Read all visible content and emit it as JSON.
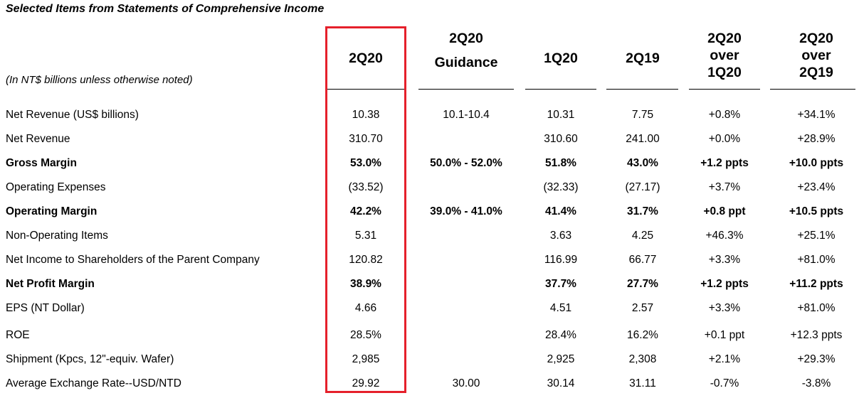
{
  "title": "Selected Items from Statements of Comprehensive Income",
  "note": "(In NT$ billions unless otherwise noted)",
  "headers": [
    {
      "lines": [
        "2Q20"
      ]
    },
    {
      "lines": [
        "2Q20",
        "Guidance"
      ]
    },
    {
      "lines": [
        "1Q20"
      ]
    },
    {
      "lines": [
        "2Q19"
      ]
    },
    {
      "lines": [
        "2Q20",
        "over",
        "1Q20"
      ]
    },
    {
      "lines": [
        "2Q20",
        "over",
        "2Q19"
      ]
    }
  ],
  "rows": [
    {
      "label": "Net Revenue (US$ billions)",
      "bold": false,
      "values": [
        "10.38",
        "10.1-10.4",
        "10.31",
        "7.75",
        "+0.8%",
        "+34.1%"
      ]
    },
    {
      "label": "Net Revenue",
      "bold": false,
      "values": [
        "310.70",
        "",
        "310.60",
        "241.00",
        "+0.0%",
        "+28.9%"
      ]
    },
    {
      "label": "Gross Margin",
      "bold": true,
      "values": [
        "53.0%",
        "50.0% - 52.0%",
        "51.8%",
        "43.0%",
        "+1.2 ppts",
        "+10.0 ppts"
      ]
    },
    {
      "label": "Operating Expenses",
      "bold": false,
      "values": [
        "(33.52)",
        "",
        "(32.33)",
        "(27.17)",
        "+3.7%",
        "+23.4%"
      ]
    },
    {
      "label": "Operating Margin",
      "bold": true,
      "values": [
        "42.2%",
        "39.0% - 41.0%",
        "41.4%",
        "31.7%",
        "+0.8 ppt",
        "+10.5 ppts"
      ]
    },
    {
      "label": "Non-Operating Items",
      "bold": false,
      "values": [
        "5.31",
        "",
        "3.63",
        "4.25",
        "+46.3%",
        "+25.1%"
      ]
    },
    {
      "label": "Net Income to Shareholders of the Parent Company",
      "bold": false,
      "values": [
        "120.82",
        "",
        "116.99",
        "66.77",
        "+3.3%",
        "+81.0%"
      ]
    },
    {
      "label": "Net Profit Margin",
      "bold": true,
      "values": [
        "38.9%",
        "",
        "37.7%",
        "27.7%",
        "+1.2 ppts",
        "+11.2 ppts"
      ]
    },
    {
      "label": "EPS (NT Dollar)",
      "bold": false,
      "values": [
        "4.66",
        "",
        "4.51",
        "2.57",
        "+3.3%",
        "+81.0%"
      ]
    },
    {
      "label": "ROE",
      "bold": false,
      "values": [
        "28.5%",
        "",
        "28.4%",
        "16.2%",
        "+0.1 ppt",
        "+12.3 ppts"
      ]
    },
    {
      "label": "Shipment (Kpcs, 12\"-equiv. Wafer)",
      "bold": false,
      "values": [
        "2,985",
        "",
        "2,925",
        "2,308",
        "+2.1%",
        "+29.3%"
      ]
    },
    {
      "label": "Average Exchange Rate--USD/NTD",
      "bold": false,
      "values": [
        "29.92",
        "30.00",
        "30.14",
        "31.11",
        "-0.7%",
        "-3.8%"
      ]
    }
  ],
  "highlight_color": "#e5202b"
}
